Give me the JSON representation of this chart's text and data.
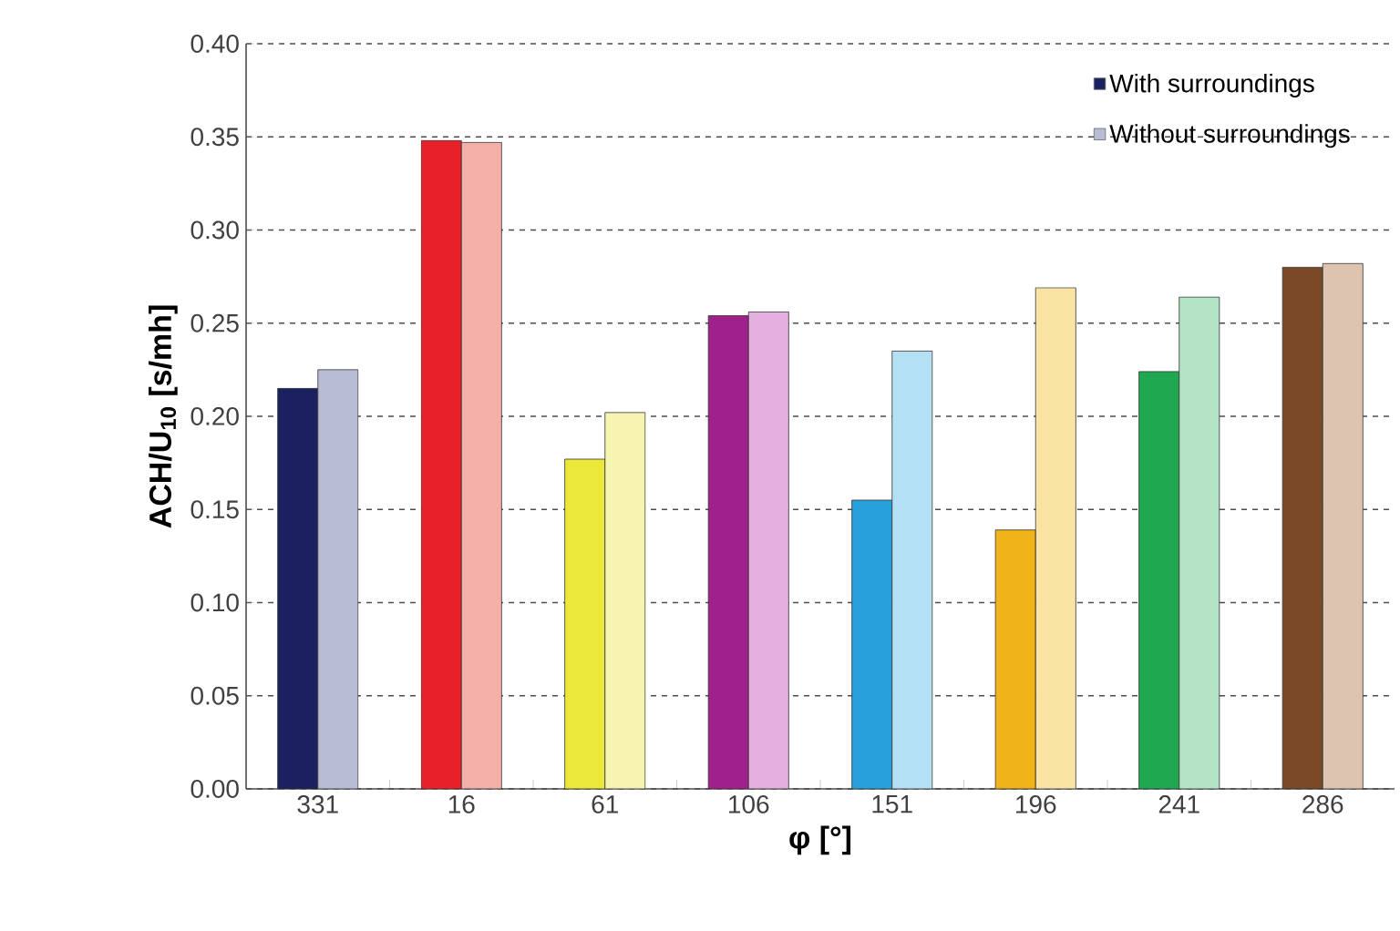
{
  "chart_data": {
    "type": "bar",
    "xlabel": "φ  [°]",
    "ylabel": "ACH/U$_{10}$  [s/mh]",
    "categories": [
      "331",
      "16",
      "61",
      "106",
      "151",
      "196",
      "241",
      "286"
    ],
    "series": [
      {
        "name": "With surroundings",
        "colors": [
          "#1b2060",
          "#e8202a",
          "#ece83a",
          "#a0208c",
          "#28a0dc",
          "#f0b418",
          "#20a850",
          "#7a4a28"
        ],
        "values": [
          0.215,
          0.348,
          0.177,
          0.254,
          0.155,
          0.139,
          0.224,
          0.28
        ]
      },
      {
        "name": "Without surroundings",
        "colors": [
          "#b8bcd4",
          "#f4b0a8",
          "#f6f4b0",
          "#e4b0e0",
          "#b4e0f4",
          "#fae4a4",
          "#b4e4c4",
          "#dcc4b0"
        ],
        "values": [
          0.225,
          0.347,
          0.202,
          0.256,
          0.235,
          0.269,
          0.264,
          0.282
        ]
      }
    ],
    "ylim": [
      0,
      0.4
    ],
    "yticks": [
      {
        "value": 0,
        "label": "0.00"
      },
      {
        "value": 0.05,
        "label": "0.05"
      },
      {
        "value": 0.1,
        "label": "0.10"
      },
      {
        "value": 0.15,
        "label": "0.15"
      },
      {
        "value": 0.2,
        "label": "0.20"
      },
      {
        "value": 0.25,
        "label": "0.25"
      },
      {
        "value": 0.3,
        "label": "0.30"
      },
      {
        "value": 0.35,
        "label": "0.35"
      },
      {
        "value": 0.4,
        "label": "0.40"
      }
    ],
    "grid": "y",
    "legend": "top right"
  }
}
